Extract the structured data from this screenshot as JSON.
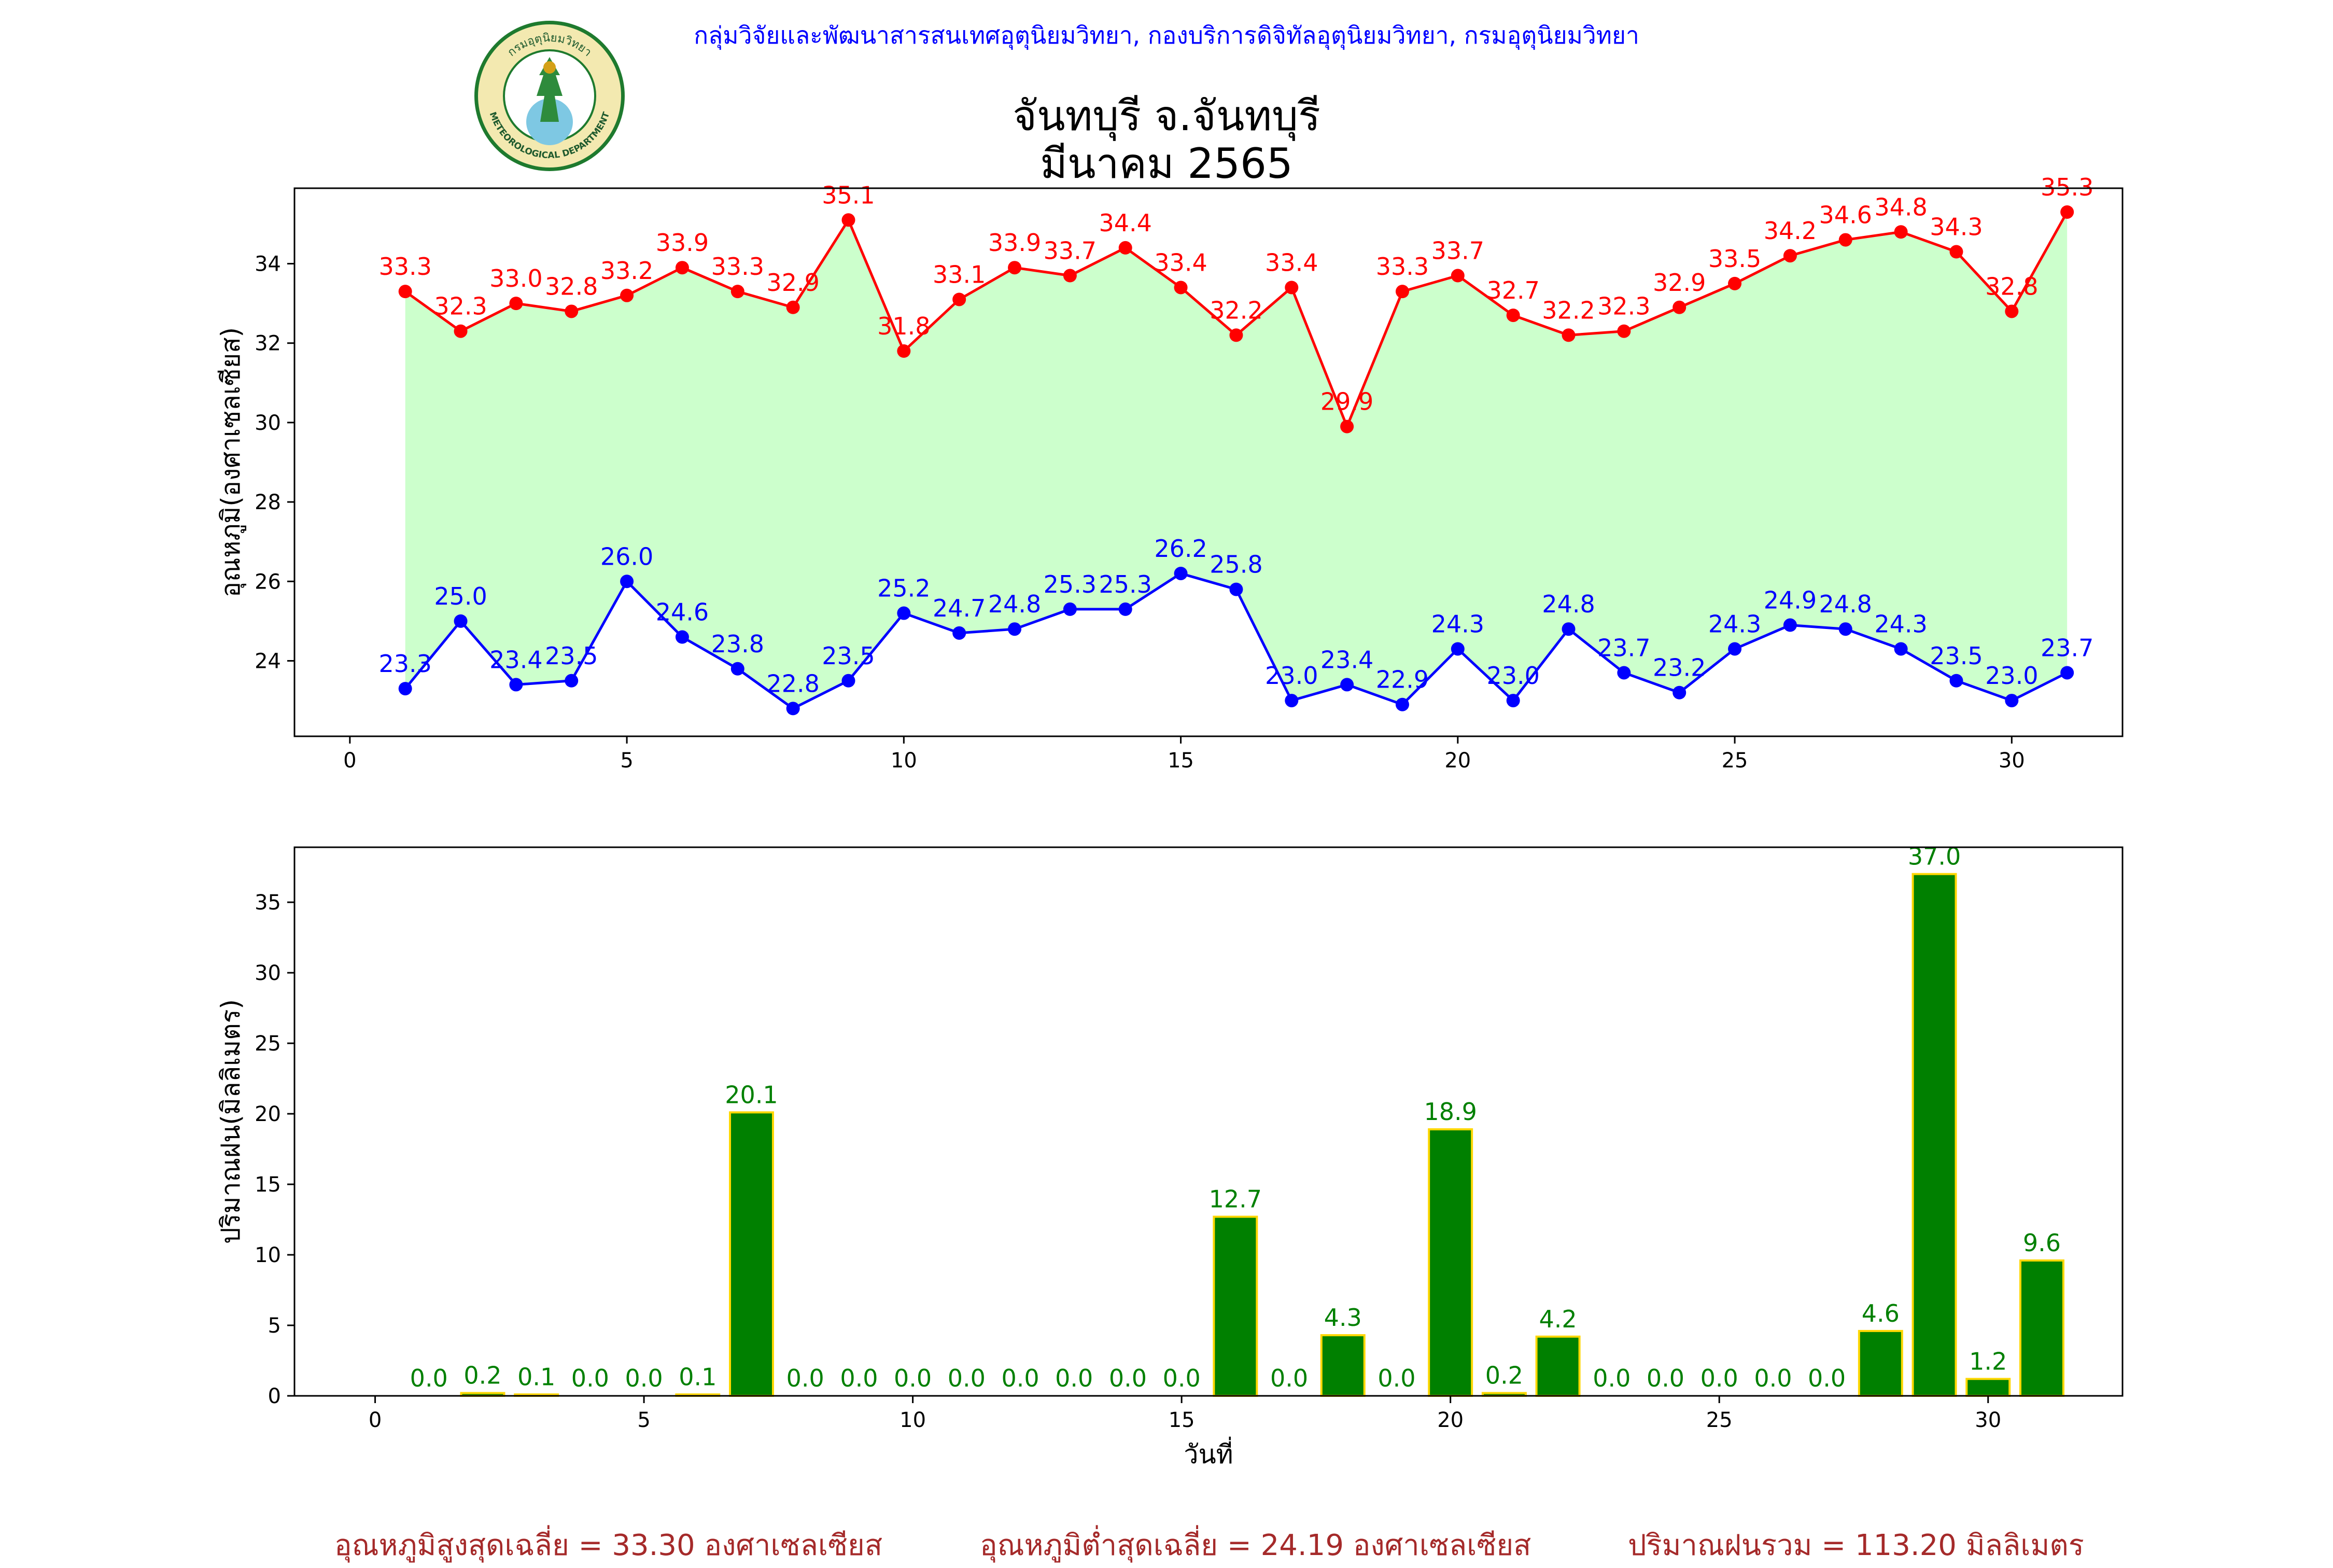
{
  "header": {
    "agency": "กลุ่มวิจัยและพัฒนาสารสนเทศอุตุนิยมวิทยา, กองบริการดิจิทัลอุตุนิยมวิทยา, กรมอุตุนิยมวิทยา",
    "title_line1": "จันทบุรี จ.จันทบุรี",
    "title_line2": "มีนาคม 2565"
  },
  "logo": {
    "text_top": "กรมอุตุนิยมวิทยา",
    "text_bottom": "METEOROLOGICAL DEPARTMENT"
  },
  "footer": {
    "avg_max": "อุณหภูมิสูงสุดเฉลี่ย = 33.30 องศาเซลเซียส",
    "avg_min": "อุณหภูมิต่ำสุดเฉลี่ย = 24.19 องศาเซลเซียส",
    "total_rain": "ปริมาณฝนรวม = 113.20 มิลลิเมตร"
  },
  "colors": {
    "max_line": "#ff0000",
    "min_line": "#0000ff",
    "fill": "#ccffcc",
    "bar_fill": "#008000",
    "bar_edge": "#ffd700",
    "rain_label": "#008000",
    "footer_text": "#a52a2a",
    "agency_text": "#0000ff"
  },
  "chart_data": [
    {
      "type": "line",
      "ylabel": "อุณหภูมิ(องศาเซลเซียส)",
      "xlim": [
        -1,
        32
      ],
      "ylim": [
        22.1,
        35.9
      ],
      "xticks": [
        0,
        5,
        10,
        15,
        20,
        25,
        30
      ],
      "yticks": [
        24,
        26,
        28,
        30,
        32,
        34
      ],
      "x": [
        1,
        2,
        3,
        4,
        5,
        6,
        7,
        8,
        9,
        10,
        11,
        12,
        13,
        14,
        15,
        16,
        17,
        18,
        19,
        20,
        21,
        22,
        23,
        24,
        25,
        26,
        27,
        28,
        29,
        30,
        31
      ],
      "series": [
        {
          "key": "max",
          "values": [
            33.3,
            32.3,
            33.0,
            32.8,
            33.2,
            33.9,
            33.3,
            32.9,
            35.1,
            31.8,
            33.1,
            33.9,
            33.7,
            34.4,
            33.4,
            32.2,
            33.4,
            29.9,
            33.3,
            33.7,
            32.7,
            32.2,
            32.3,
            32.9,
            33.5,
            34.2,
            34.6,
            34.8,
            34.3,
            32.8,
            35.3
          ]
        },
        {
          "key": "min",
          "values": [
            23.3,
            25.0,
            23.4,
            23.5,
            26.0,
            24.6,
            23.8,
            22.8,
            23.5,
            25.2,
            24.7,
            24.8,
            25.3,
            25.3,
            26.2,
            25.8,
            23.0,
            23.4,
            22.9,
            24.3,
            23.0,
            24.8,
            23.7,
            23.2,
            24.3,
            24.9,
            24.8,
            24.3,
            23.5,
            23.0,
            23.7
          ]
        }
      ]
    },
    {
      "type": "bar",
      "ylabel": "ปริมาณฝน(มิลลิเมตร)",
      "xlabel": "วันที่",
      "xlim": [
        -1.5,
        32.5
      ],
      "ylim": [
        0,
        38.9
      ],
      "xticks": [
        0,
        5,
        10,
        15,
        20,
        25,
        30
      ],
      "yticks": [
        0,
        5,
        10,
        15,
        20,
        25,
        30,
        35
      ],
      "x": [
        1,
        2,
        3,
        4,
        5,
        6,
        7,
        8,
        9,
        10,
        11,
        12,
        13,
        14,
        15,
        16,
        17,
        18,
        19,
        20,
        21,
        22,
        23,
        24,
        25,
        26,
        27,
        28,
        29,
        30,
        31
      ],
      "values": [
        0.0,
        0.2,
        0.1,
        0.0,
        0.0,
        0.1,
        20.1,
        0.0,
        0.0,
        0.0,
        0.0,
        0.0,
        0.0,
        0.0,
        0.0,
        12.7,
        0.0,
        4.3,
        0.0,
        18.9,
        0.2,
        4.2,
        0.0,
        0.0,
        0.0,
        0.0,
        0.0,
        4.6,
        37.0,
        1.2,
        9.6
      ]
    }
  ]
}
